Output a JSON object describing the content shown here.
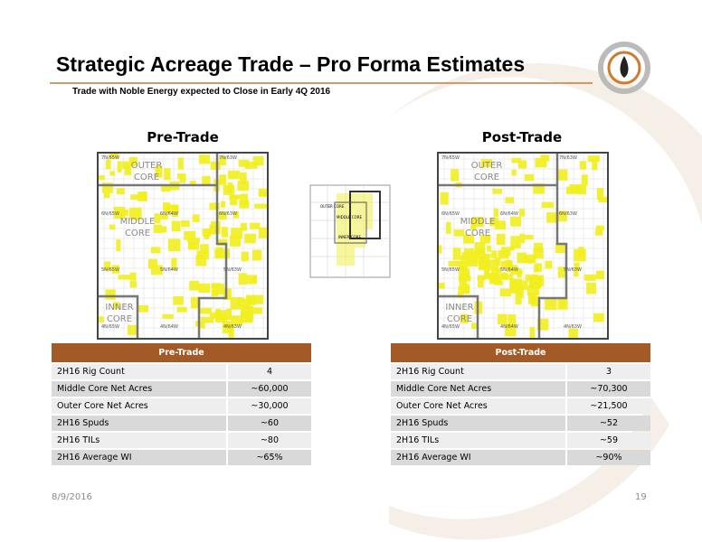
{
  "header": {
    "title": "Strategic Acreage Trade – Pro Forma Estimates",
    "subtitle": "Trade with Noble Energy expected to Close in Early 4Q 2016"
  },
  "maps": [
    {
      "title": "Pre-Trade",
      "zones": [
        [
          "OUTER",
          "CORE"
        ],
        [
          "MIDDLE",
          "CORE"
        ],
        [
          "INNER",
          "CORE"
        ]
      ],
      "townships": [
        "7N/65W",
        "7N/63W",
        "6N/65W",
        "6N/64W",
        "6N/63W",
        "5N/65W",
        "5N/64W",
        "5N/63W",
        "4N/65W",
        "4N/64W",
        "4N/63W"
      ]
    },
    {
      "title": "Post-Trade",
      "zones": [
        [
          "OUTER",
          "CORE"
        ],
        [
          "MIDDLE",
          "CORE"
        ],
        [
          "INNER",
          "CORE"
        ]
      ],
      "townships": [
        "7N/65W",
        "7N/63W",
        "6N/65W",
        "6N/64W",
        "6N/63W",
        "5N/65W",
        "5N/64W",
        "5N/63W",
        "4N/65W",
        "4N/64W",
        "4N/63W"
      ]
    }
  ],
  "inset": {
    "labels": [
      "OUTER CORE",
      "MIDDLE CORE",
      "INNER CORE"
    ]
  },
  "tables": [
    {
      "header": "Pre-Trade",
      "rows": [
        [
          "2H16 Rig Count",
          "4"
        ],
        [
          "Middle Core Net Acres",
          "~60,000"
        ],
        [
          "Outer Core Net Acres",
          "~30,000"
        ],
        [
          "2H16 Spuds",
          "~60"
        ],
        [
          "2H16 TILs",
          "~80"
        ],
        [
          "2H16 Average WI",
          "~65%"
        ]
      ]
    },
    {
      "header": "Post-Trade",
      "rows": [
        [
          "2H16 Rig Count",
          "3"
        ],
        [
          "Middle Core Net Acres",
          "~70,300"
        ],
        [
          "Outer Core Net Acres",
          "~21,500"
        ],
        [
          "2H16 Spuds",
          "~52"
        ],
        [
          "2H16 TILs",
          "~59"
        ],
        [
          "2H16 Average WI",
          "~90%"
        ]
      ]
    }
  ],
  "footer": {
    "date": "8/9/2016",
    "page": "19"
  }
}
